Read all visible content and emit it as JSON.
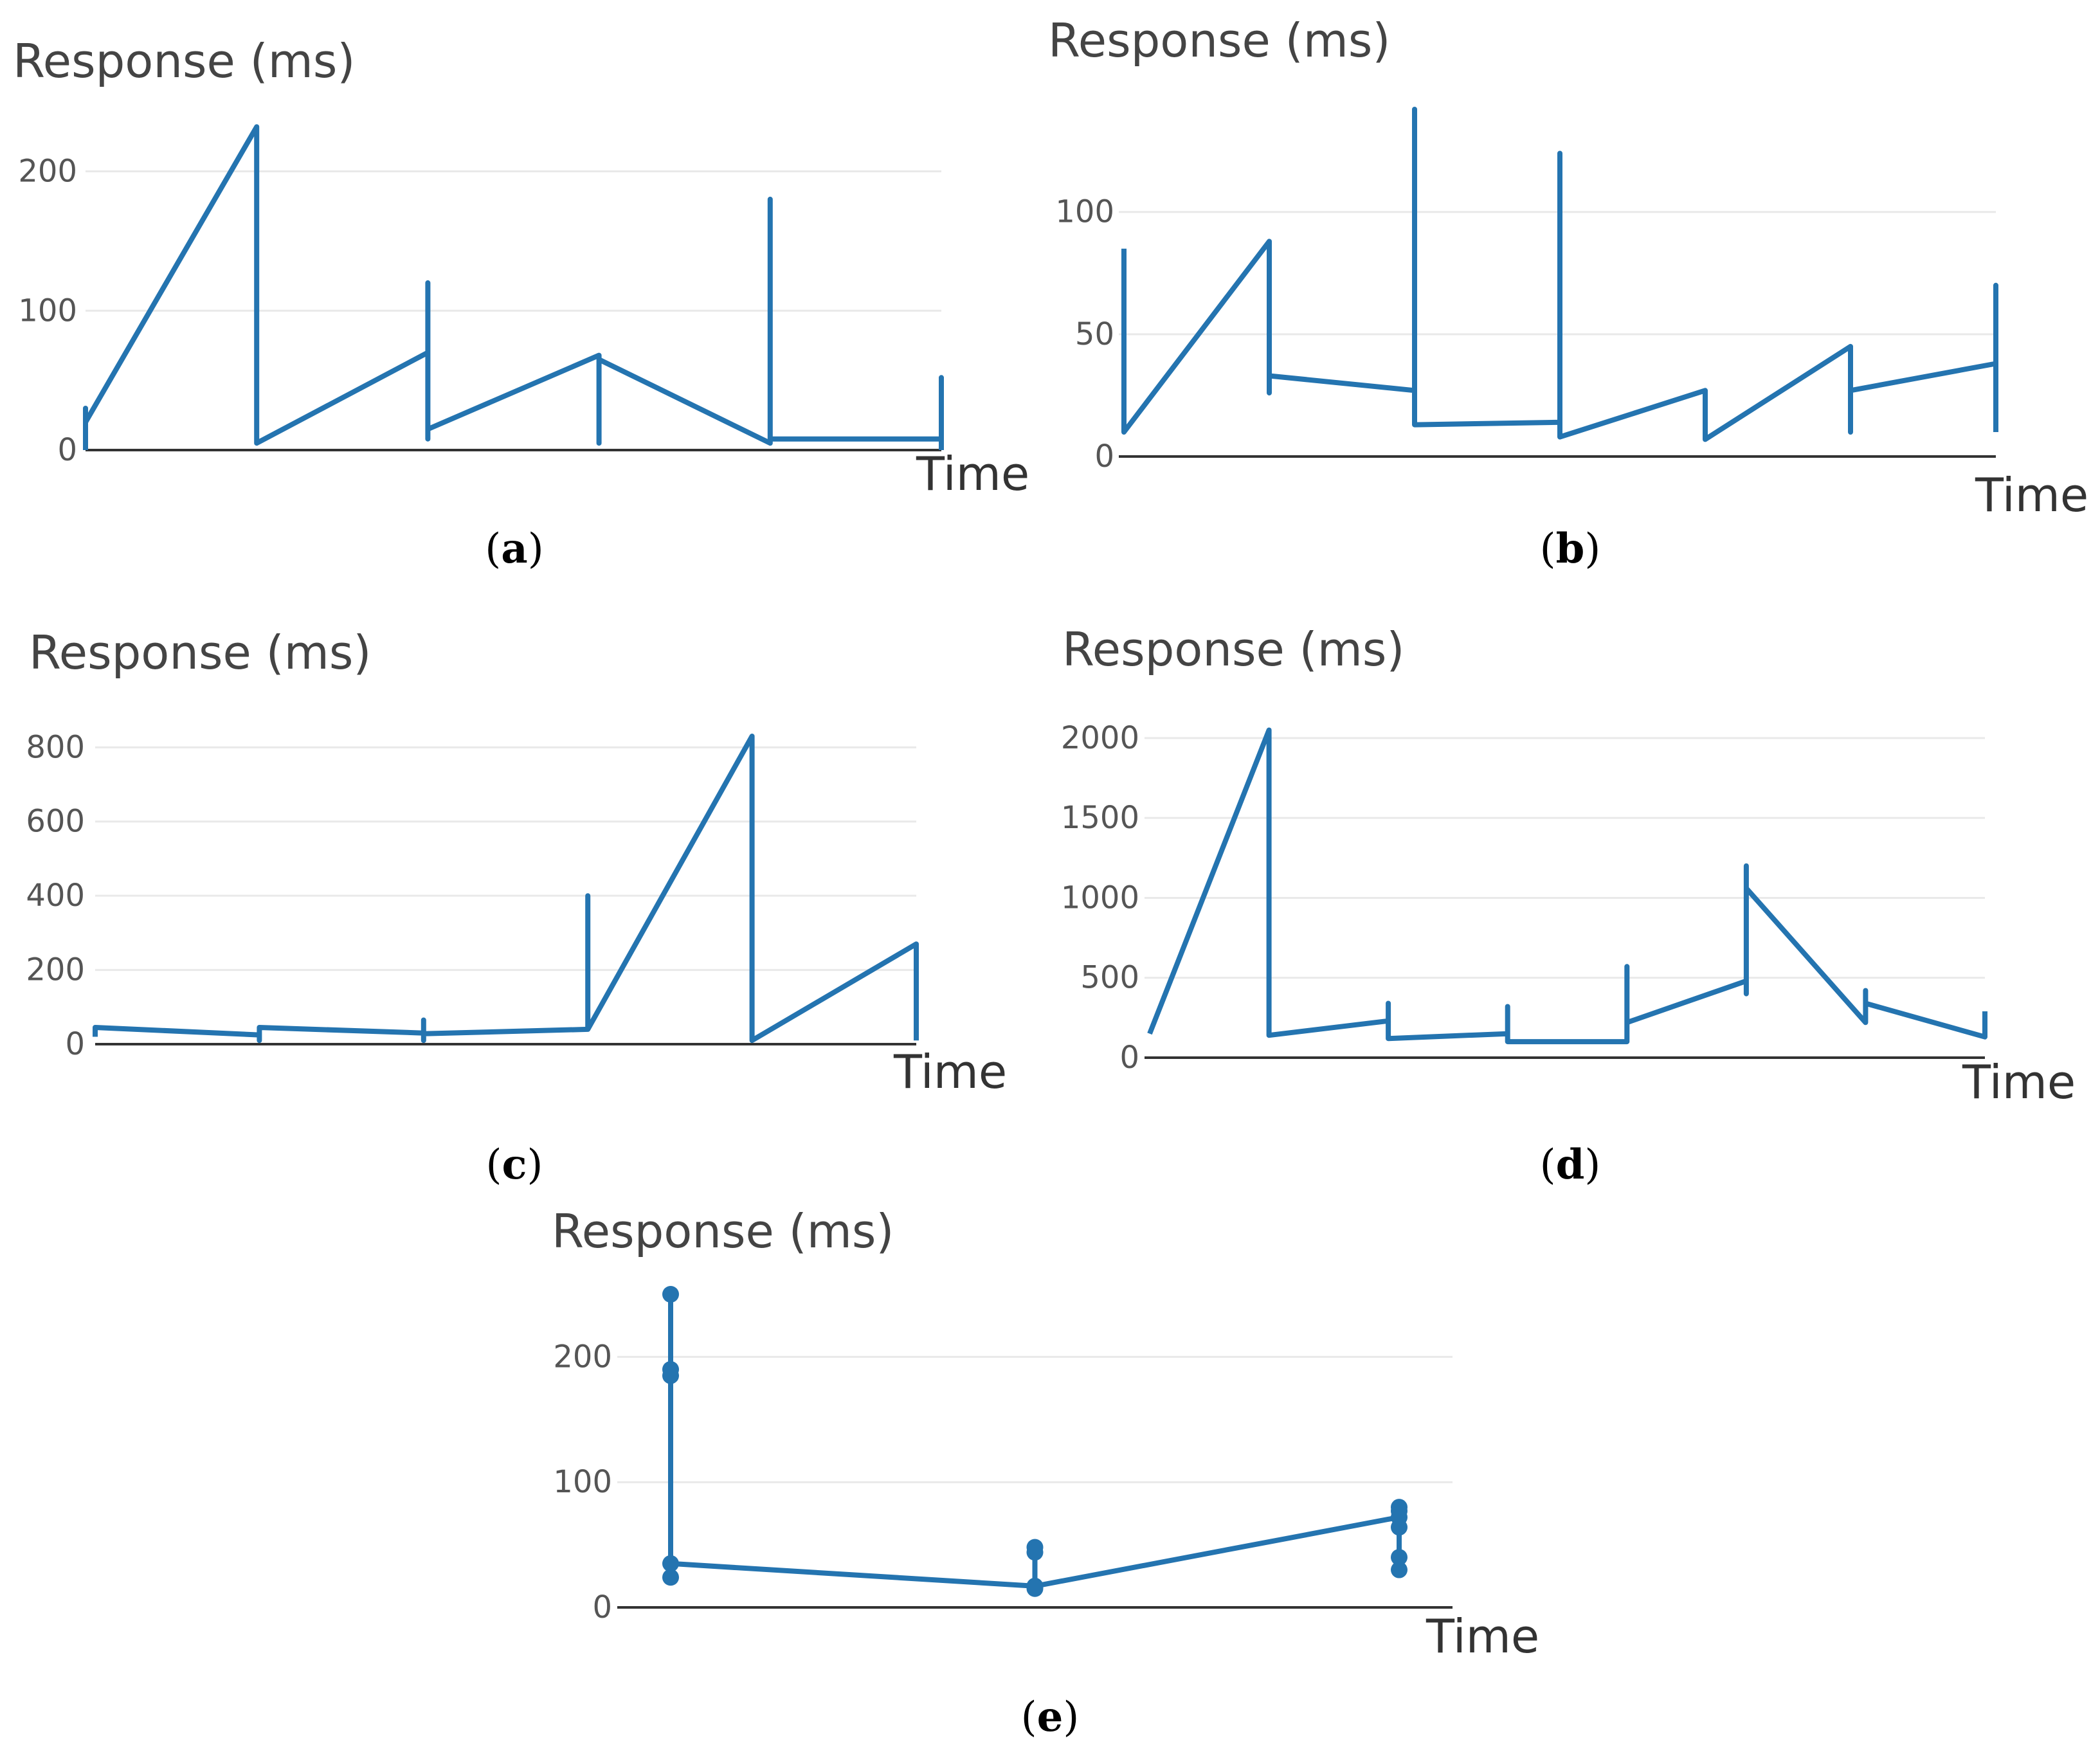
{
  "colors": {
    "line": "#2474b0",
    "grid": "#e9e9e9",
    "axis": "#333333"
  },
  "chart_data": [
    {
      "id": "a",
      "type": "line",
      "caption": "a",
      "ylabel": "Response (ms)",
      "xlabel": "Time",
      "yticks": [
        0,
        100,
        200
      ],
      "ylim": [
        0,
        233
      ],
      "xlim": [
        0,
        5
      ],
      "markers": false,
      "series": [
        {
          "name": "response",
          "points": [
            [
              0,
              0
            ],
            [
              0,
              30
            ],
            [
              0,
              20
            ],
            [
              1,
              232
            ],
            [
              1,
              228
            ],
            [
              1,
              5
            ],
            [
              2,
              70
            ],
            [
              2,
              120
            ],
            [
              2,
              8
            ],
            [
              2,
              15
            ],
            [
              3,
              68
            ],
            [
              3,
              60
            ],
            [
              3,
              5
            ],
            [
              3,
              65
            ],
            [
              4,
              5
            ],
            [
              4,
              180
            ],
            [
              4,
              8
            ],
            [
              5,
              8
            ],
            [
              5,
              52
            ],
            [
              5,
              0
            ]
          ]
        }
      ]
    },
    {
      "id": "b",
      "type": "line",
      "caption": "b",
      "ylabel": "Response (ms)",
      "xlabel": "Time",
      "yticks": [
        0,
        50,
        100
      ],
      "ylim": [
        0,
        142
      ],
      "xlim": [
        0,
        6
      ],
      "markers": false,
      "series": [
        {
          "name": "response",
          "points": [
            [
              0,
              85
            ],
            [
              0,
              10
            ],
            [
              1,
              88
            ],
            [
              1,
              26
            ],
            [
              1,
              33
            ],
            [
              2,
              27
            ],
            [
              2,
              142
            ],
            [
              2,
              13
            ],
            [
              3,
              14
            ],
            [
              3,
              124
            ],
            [
              3,
              8
            ],
            [
              4,
              27
            ],
            [
              4,
              7
            ],
            [
              5,
              45
            ],
            [
              5,
              10
            ],
            [
              5,
              27
            ],
            [
              6,
              38
            ],
            [
              6,
              70
            ],
            [
              6,
              10
            ]
          ]
        }
      ]
    },
    {
      "id": "c",
      "type": "line",
      "caption": "c",
      "ylabel": "Response (ms)",
      "xlabel": "Time",
      "yticks": [
        0,
        200,
        400,
        600,
        800
      ],
      "ylim": [
        0,
        830
      ],
      "xlim": [
        0,
        5
      ],
      "markers": false,
      "series": [
        {
          "name": "response",
          "points": [
            [
              0,
              20
            ],
            [
              0,
              45
            ],
            [
              1,
              25
            ],
            [
              1,
              10
            ],
            [
              1,
              45
            ],
            [
              2,
              30
            ],
            [
              2,
              10
            ],
            [
              2,
              65
            ],
            [
              2,
              28
            ],
            [
              3,
              40
            ],
            [
              3,
              400
            ],
            [
              3,
              40
            ],
            [
              4,
              830
            ],
            [
              4,
              10
            ],
            [
              5,
              270
            ],
            [
              5,
              10
            ]
          ]
        }
      ]
    },
    {
      "id": "d",
      "type": "line",
      "caption": "d",
      "ylabel": "Response (ms)",
      "xlabel": "Time",
      "yticks": [
        0,
        500,
        1000,
        1500,
        2000
      ],
      "ylim": [
        0,
        2060
      ],
      "xlim": [
        0,
        7
      ],
      "markers": false,
      "series": [
        {
          "name": "response",
          "points": [
            [
              0,
              150
            ],
            [
              1,
              2050
            ],
            [
              1,
              140
            ],
            [
              2,
              230
            ],
            [
              2,
              340
            ],
            [
              2,
              120
            ],
            [
              3,
              150
            ],
            [
              3,
              320
            ],
            [
              3,
              100
            ],
            [
              4,
              100
            ],
            [
              4,
              570
            ],
            [
              4,
              220
            ],
            [
              5,
              480
            ],
            [
              5,
              400
            ],
            [
              5,
              1200
            ],
            [
              5,
              1060
            ],
            [
              6,
              220
            ],
            [
              6,
              420
            ],
            [
              6,
              340
            ],
            [
              7,
              130
            ],
            [
              7,
              290
            ]
          ]
        }
      ]
    },
    {
      "id": "e",
      "type": "line",
      "caption": "e",
      "ylabel": "Response (ms)",
      "xlabel": "Time",
      "yticks": [
        0,
        100,
        200
      ],
      "ylim": [
        0,
        250
      ],
      "xlim": [
        0,
        2
      ],
      "markers": true,
      "series": [
        {
          "name": "response",
          "points": [
            [
              0,
              24
            ],
            [
              0,
              250
            ],
            [
              0,
              190
            ],
            [
              0,
              185
            ],
            [
              0,
              35
            ],
            [
              1,
              17
            ],
            [
              1,
              48
            ],
            [
              1,
              44
            ],
            [
              1,
              15
            ],
            [
              1,
              17
            ],
            [
              2,
              72
            ],
            [
              2,
              80
            ],
            [
              2,
              77
            ],
            [
              2,
              64
            ],
            [
              2,
              40
            ],
            [
              2,
              30
            ]
          ]
        }
      ]
    }
  ]
}
